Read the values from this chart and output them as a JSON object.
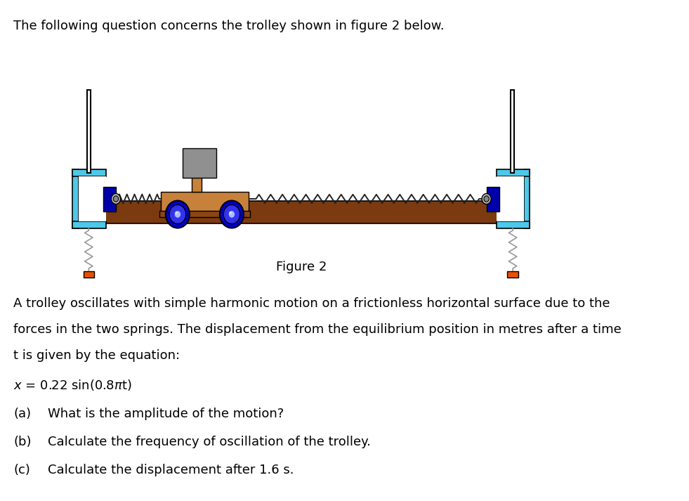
{
  "bg_color": "#ffffff",
  "title_text": "The following question concerns the trolley shown in figure 2 below.",
  "figure_label": "Figure 2",
  "paragraph_line1": "A trolley oscillates with simple harmonic motion on a frictionless horizontal surface due to the",
  "paragraph_line2": "forces in the two springs. The displacement from the equilibrium position in metres after a time",
  "paragraph_line3": "t is given by the equation:",
  "equation": "x = 0.22 sin(0.8πt)",
  "qa_label": "(a)",
  "qa_text": "What is the amplitude of the motion?",
  "qb_label": "(b)",
  "qb_text": "Calculate the frequency of oscillation of the trolley.",
  "qc_label": "(c)",
  "qc_text": "Calculate the displacement after 1.6 s.",
  "cyan": "#4dc8e8",
  "dark_cyan": "#00a0d0",
  "brown_track": "#7B3A10",
  "wood_brown": "#c8813a",
  "dark_wood": "#8B4513",
  "blue_wheel": "#0000cc",
  "blue_wheel2": "#3333ee",
  "gray_box": "#909090",
  "dark_gray": "#606060",
  "orange": "#e85000",
  "black": "#000000",
  "white": "#ffffff",
  "light_gray": "#cccccc",
  "mid_gray": "#888888",
  "dark_blue_block": "#0000aa"
}
